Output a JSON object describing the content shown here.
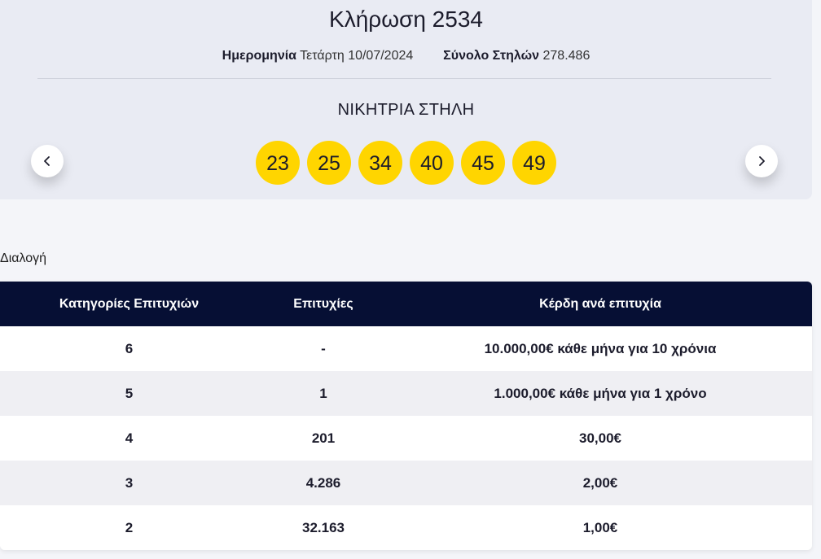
{
  "draw": {
    "title": "Κλήρωση 2534",
    "date_label": "Ημερομηνία",
    "date_value": "Τετάρτη 10/07/2024",
    "total_label": "Σύνολο Στηλών",
    "total_value": "278.486",
    "winning_label": "ΝΙΚΗΤΡΙΑ ΣΤΗΛΗ",
    "numbers": [
      "23",
      "25",
      "34",
      "40",
      "45",
      "49"
    ],
    "ball_color": "#ffd500"
  },
  "nav": {
    "prev_icon": "chevron-left-icon",
    "next_icon": "chevron-right-icon"
  },
  "sort": {
    "label": "Διαλογή"
  },
  "table": {
    "headers": [
      "Κατηγορίες Επιτυχιών",
      "Επιτυχίες",
      "Κέρδη ανά επιτυχία"
    ],
    "header_color": "#060f34",
    "rows": [
      [
        "6",
        "-",
        "10.000,00€ κάθε μήνα για 10 χρόνια"
      ],
      [
        "5",
        "1",
        "1.000,00€ κάθε μήνα για 1 χρόνο"
      ],
      [
        "4",
        "201",
        "30,00€"
      ],
      [
        "3",
        "4.286",
        "2,00€"
      ],
      [
        "2",
        "32.163",
        "1,00€"
      ]
    ]
  }
}
